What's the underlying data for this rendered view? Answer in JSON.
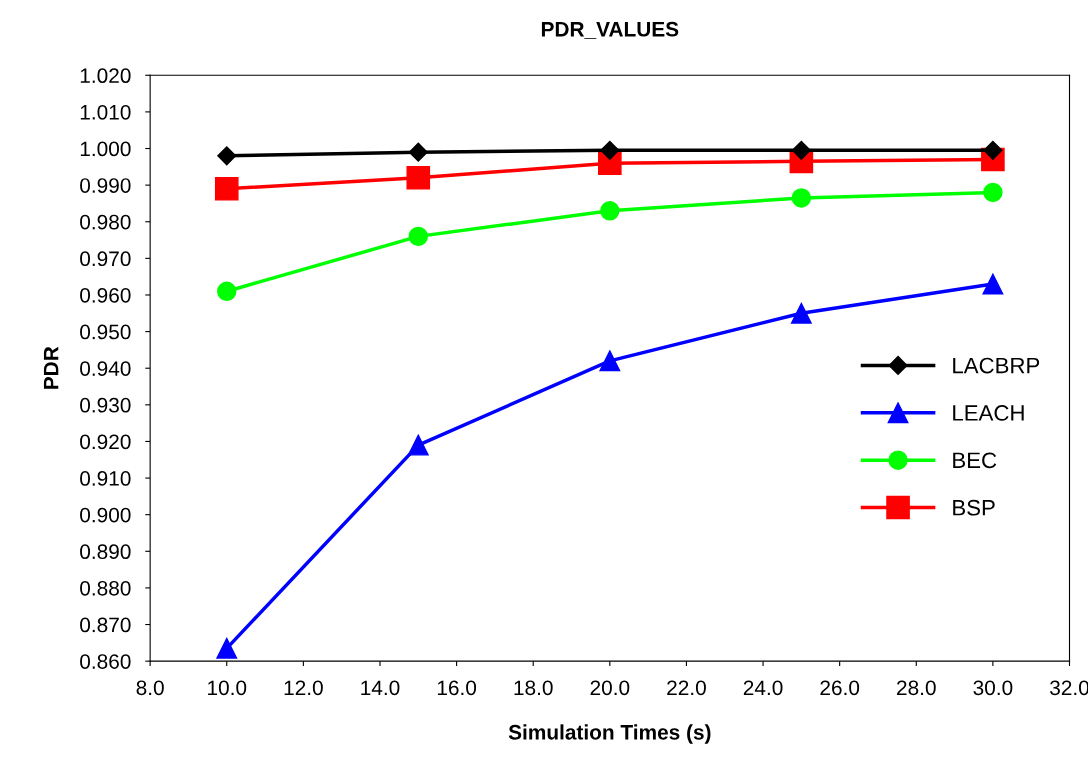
{
  "chart_data": {
    "type": "line",
    "title": "PDR_VALUES",
    "xlabel": "Simulation Times (s)",
    "ylabel": "PDR",
    "x": [
      10,
      15,
      20,
      25,
      30
    ],
    "series": [
      {
        "name": "LACBRP",
        "color": "#000000",
        "marker": "diamond",
        "values": [
          0.998,
          0.999,
          0.9995,
          0.9995,
          0.9995
        ]
      },
      {
        "name": "LEACH",
        "color": "#0000ff",
        "marker": "triangle",
        "values": [
          0.8635,
          0.919,
          0.942,
          0.955,
          0.963
        ]
      },
      {
        "name": "BEC",
        "color": "#00ff00",
        "marker": "circle",
        "values": [
          0.961,
          0.976,
          0.983,
          0.9865,
          0.988
        ]
      },
      {
        "name": "BSP",
        "color": "#ff0000",
        "marker": "square",
        "values": [
          0.989,
          0.992,
          0.996,
          0.9965,
          0.997
        ]
      }
    ],
    "xlim": [
      8,
      32
    ],
    "xticks": [
      {
        "value": 8,
        "label": "8.0"
      },
      {
        "value": 10,
        "label": "10.0"
      },
      {
        "value": 12,
        "label": "12.0"
      },
      {
        "value": 14,
        "label": "14.0"
      },
      {
        "value": 16,
        "label": "16.0"
      },
      {
        "value": 18,
        "label": "18.0"
      },
      {
        "value": 20,
        "label": "20.0"
      },
      {
        "value": 22,
        "label": "22.0"
      },
      {
        "value": 24,
        "label": "24.0"
      },
      {
        "value": 26,
        "label": "26.0"
      },
      {
        "value": 28,
        "label": "28.0"
      },
      {
        "value": 30,
        "label": "30.0"
      },
      {
        "value": 32,
        "label": "32.0"
      }
    ],
    "ylim": [
      0.86,
      1.02
    ],
    "yticks": [
      {
        "value": 0.86,
        "label": "0.860"
      },
      {
        "value": 0.87,
        "label": "0.870"
      },
      {
        "value": 0.88,
        "label": "0.880"
      },
      {
        "value": 0.89,
        "label": "0.890"
      },
      {
        "value": 0.9,
        "label": "0.900"
      },
      {
        "value": 0.91,
        "label": "0.910"
      },
      {
        "value": 0.92,
        "label": "0.920"
      },
      {
        "value": 0.93,
        "label": "0.930"
      },
      {
        "value": 0.94,
        "label": "0.940"
      },
      {
        "value": 0.95,
        "label": "0.950"
      },
      {
        "value": 0.96,
        "label": "0.960"
      },
      {
        "value": 0.97,
        "label": "0.970"
      },
      {
        "value": 0.98,
        "label": "0.980"
      },
      {
        "value": 0.99,
        "label": "0.990"
      },
      {
        "value": 1.0,
        "label": "1.000"
      },
      {
        "value": 1.01,
        "label": "1.010"
      },
      {
        "value": 1.02,
        "label": "1.020"
      }
    ],
    "grid": false,
    "legend": "right",
    "line_style": "solid"
  }
}
